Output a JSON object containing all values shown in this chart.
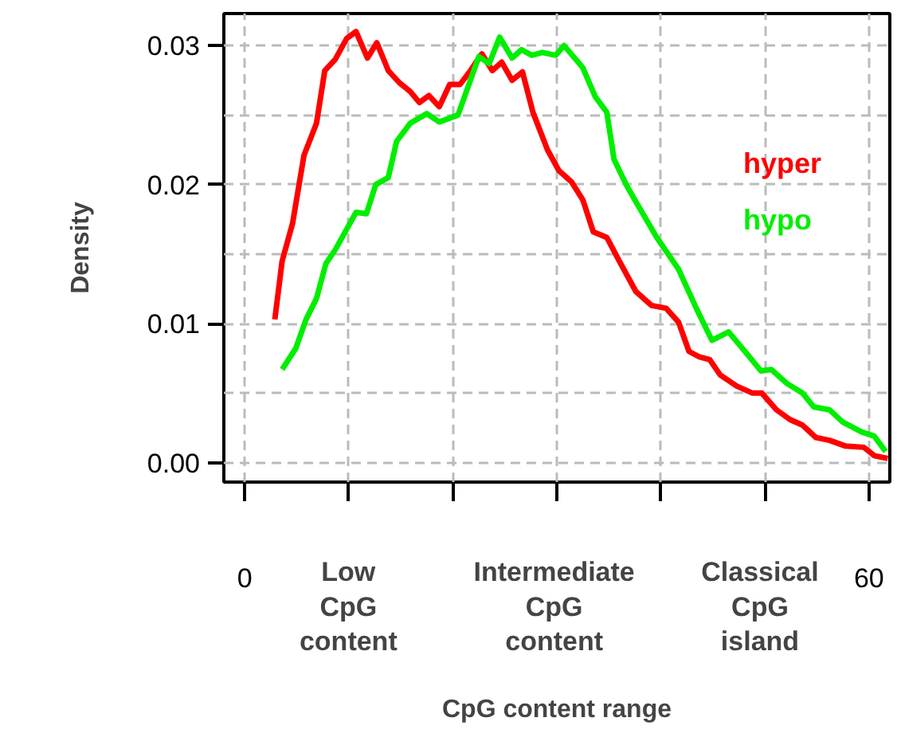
{
  "chart_data": {
    "type": "line",
    "xlabel": "CpG content range",
    "ylabel": "Density",
    "xlim": [
      -2.0,
      62.0
    ],
    "ylim": [
      -0.0014,
      0.0323
    ],
    "xticks": [
      0,
      {
        "value": 10,
        "label": null
      },
      {
        "value": 20,
        "label": null
      },
      {
        "value": 30,
        "label": null
      },
      {
        "value": 40,
        "label": null
      },
      {
        "value": 50,
        "label": null
      },
      60
    ],
    "yticks": [
      {
        "value": 0,
        "label": "0.00"
      },
      {
        "value": 0.01,
        "label": "0.01"
      },
      {
        "value": 0.02,
        "label": "0.02"
      },
      {
        "value": 0.03,
        "label": "0.03"
      }
    ],
    "grid": true,
    "legend": "right",
    "line_style": "solid",
    "annotations": [
      "Low CpG content",
      "Intermediate CpG content",
      "Classical CpG island"
    ],
    "series": [
      {
        "name": "hyper",
        "color": "#ff0000",
        "x": [
          2.9,
          3.6,
          4.6,
          5.7,
          6.9,
          7.7,
          8.7,
          9.8,
          10.7,
          11.8,
          12.7,
          13.8,
          14.9,
          15.9,
          16.8,
          17.7,
          18.7,
          19.7,
          20.7,
          21.7,
          22.8,
          23.8,
          24.7,
          25.7,
          26.7,
          27.7,
          29.1,
          30.2,
          31.4,
          32.5,
          33.5,
          34.8,
          36.0,
          37.6,
          39.1,
          40.5,
          41.7,
          42.7,
          43.7,
          44.7,
          45.7,
          47.3,
          48.8,
          49.7,
          51.1,
          52.4,
          53.6,
          54.9,
          56.2,
          57.7,
          59.5,
          60.5,
          61.8
        ],
        "values": [
          0.0103,
          0.0145,
          0.0172,
          0.0221,
          0.0244,
          0.0282,
          0.029,
          0.0305,
          0.031,
          0.0291,
          0.0302,
          0.0282,
          0.0273,
          0.0267,
          0.0259,
          0.0264,
          0.0256,
          0.0272,
          0.0272,
          0.0282,
          0.0294,
          0.0282,
          0.0288,
          0.0275,
          0.0281,
          0.0252,
          0.0225,
          0.021,
          0.0202,
          0.0189,
          0.0166,
          0.0162,
          0.0145,
          0.0123,
          0.0113,
          0.0111,
          0.0101,
          0.008,
          0.0076,
          0.0074,
          0.0063,
          0.0055,
          0.005,
          0.005,
          0.0038,
          0.0031,
          0.0027,
          0.0018,
          0.0016,
          0.0012,
          0.0011,
          0.0005,
          0.0003
        ]
      },
      {
        "name": "hypo",
        "color": "#00ee00",
        "x": [
          3.6,
          4.9,
          5.9,
          6.9,
          7.8,
          8.7,
          10.7,
          11.7,
          12.6,
          13.8,
          14.6,
          15.9,
          17.5,
          18.7,
          20.5,
          21.5,
          22.5,
          23.5,
          24.5,
          25.7,
          26.6,
          27.6,
          28.6,
          29.9,
          30.7,
          32.5,
          33.7,
          34.8,
          35.5,
          36.8,
          37.8,
          39.6,
          41.7,
          43.4,
          44.9,
          46.5,
          48.3,
          49.6,
          50.6,
          52.1,
          53.6,
          54.7,
          56.2,
          57.5,
          59.3,
          60.5,
          61.6
        ],
        "values": [
          0.0067,
          0.0082,
          0.0103,
          0.0118,
          0.0143,
          0.0153,
          0.018,
          0.0179,
          0.02,
          0.0205,
          0.0231,
          0.0244,
          0.0251,
          0.0245,
          0.025,
          0.0271,
          0.0292,
          0.0287,
          0.0306,
          0.0291,
          0.0297,
          0.0293,
          0.0295,
          0.0293,
          0.03,
          0.0284,
          0.0263,
          0.0252,
          0.0218,
          0.0198,
          0.0185,
          0.0162,
          0.0139,
          0.0111,
          0.0088,
          0.0094,
          0.0078,
          0.0066,
          0.0067,
          0.0057,
          0.005,
          0.004,
          0.0038,
          0.0029,
          0.0022,
          0.0019,
          0.0008
        ]
      }
    ]
  }
}
